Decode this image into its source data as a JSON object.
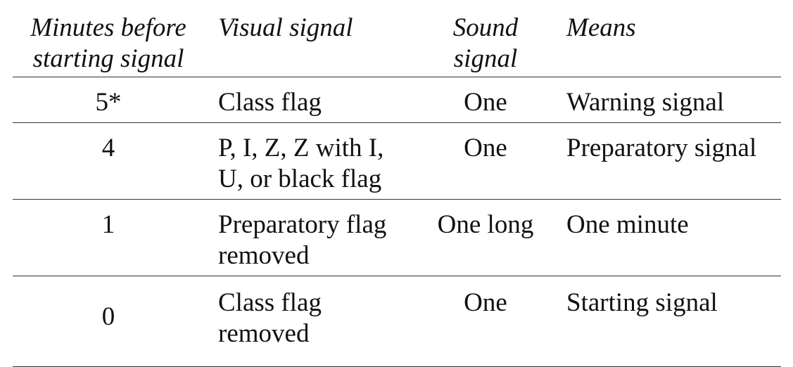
{
  "table": {
    "headers": {
      "minutes": [
        "Minutes before",
        "starting signal"
      ],
      "visual": [
        "Visual signal"
      ],
      "sound": [
        "Sound",
        "signal"
      ],
      "means": [
        "Means"
      ]
    },
    "rows": [
      {
        "minutes": "5*",
        "visual": [
          "Class flag"
        ],
        "sound": "One",
        "means": "Warning signal"
      },
      {
        "minutes": "4",
        "visual": [
          "P, I, Z, Z with I,",
          "U, or black flag"
        ],
        "sound": "One",
        "means": "Preparatory signal"
      },
      {
        "minutes": "1",
        "visual": [
          "Preparatory flag",
          "removed"
        ],
        "sound": "One long",
        "means": "One minute"
      },
      {
        "minutes": "0",
        "visual": [
          "Class flag",
          "removed"
        ],
        "sound": "One",
        "means": "Starting signal"
      }
    ]
  }
}
